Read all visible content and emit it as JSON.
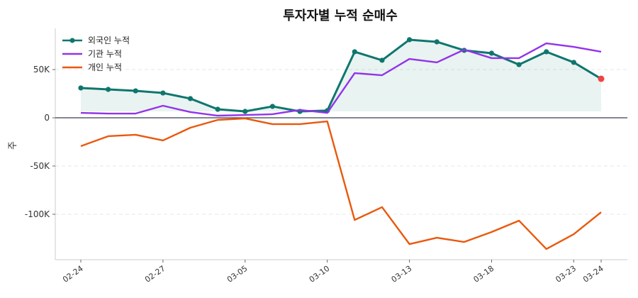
{
  "chart_data": {
    "type": "line",
    "title": "투자자별 누적 순매수",
    "xlabel": "",
    "ylabel": "주",
    "x_ticks": [
      {
        "index": 0,
        "label": "02-24"
      },
      {
        "index": 3,
        "label": "02-27"
      },
      {
        "index": 6,
        "label": "03-05"
      },
      {
        "index": 9,
        "label": "03-10"
      },
      {
        "index": 12,
        "label": "03-13"
      },
      {
        "index": 15,
        "label": "03-18"
      },
      {
        "index": 18,
        "label": "03-23"
      },
      {
        "index": 19,
        "label": "03-24"
      }
    ],
    "y_ticks": [
      {
        "value": 50000,
        "label": "50K"
      },
      {
        "value": 0,
        "label": "0"
      },
      {
        "value": -50000,
        "label": "-50K"
      },
      {
        "value": -100000,
        "label": "-100K"
      }
    ],
    "ylim": [
      -148000,
      93000
    ],
    "grid": "horizontal-dashed",
    "legend": "top-left",
    "series": [
      {
        "name": "외국인 누적",
        "color": "#0f766e",
        "markers": true,
        "fill": true,
        "values": [
          30900,
          29400,
          27900,
          25700,
          19900,
          8800,
          6600,
          11800,
          6600,
          7400,
          68400,
          59600,
          80900,
          78700,
          69900,
          66900,
          55100,
          68400,
          57400,
          40400
        ]
      },
      {
        "name": "기관 누적",
        "color": "#9333ea",
        "markers": false,
        "values": [
          5100,
          4400,
          4400,
          12500,
          5900,
          2200,
          2900,
          3700,
          8100,
          5100,
          46300,
          44100,
          61000,
          57400,
          70600,
          61800,
          61800,
          77200,
          73500,
          68400
        ]
      },
      {
        "name": "개인 누적",
        "color": "#ea580c",
        "markers": false,
        "values": [
          -29400,
          -19100,
          -17600,
          -23500,
          -10300,
          -2200,
          -700,
          -6600,
          -6600,
          -3700,
          -105900,
          -92600,
          -130900,
          -124300,
          -128700,
          -118400,
          -106600,
          -136000,
          -120600,
          -97800
        ]
      }
    ],
    "last_point_highlight_color": "#ef4444"
  }
}
